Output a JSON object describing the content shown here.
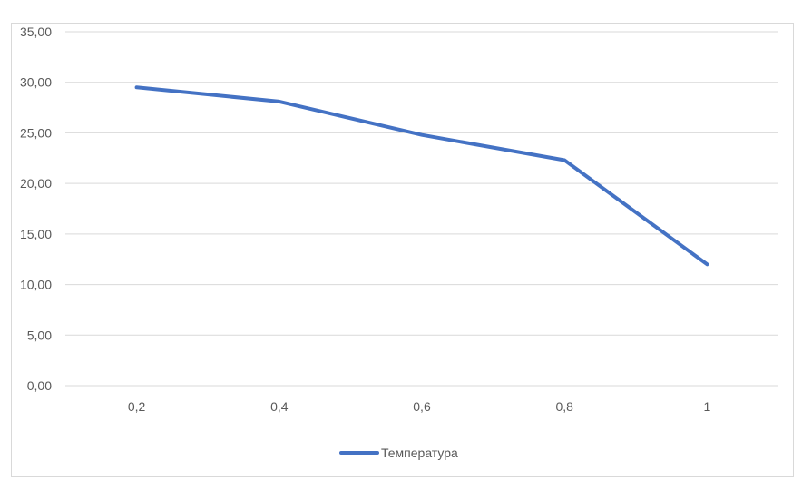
{
  "chart_data": {
    "type": "line",
    "categories": [
      "0,2",
      "0,4",
      "0,6",
      "0,8",
      "1"
    ],
    "series": [
      {
        "name": "Температура",
        "values": [
          29.5,
          28.1,
          24.8,
          22.3,
          12.0
        ],
        "color": "#4472c4"
      }
    ],
    "ylim": [
      0,
      35
    ],
    "yticks": [
      "0,00",
      "5,00",
      "10,00",
      "15,00",
      "20,00",
      "25,00",
      "30,00",
      "35,00"
    ],
    "grid": true,
    "legend_position": "bottom",
    "colors": {
      "gridline": "#d9d9d9",
      "text": "#595959",
      "border": "#d9d9d9"
    }
  }
}
